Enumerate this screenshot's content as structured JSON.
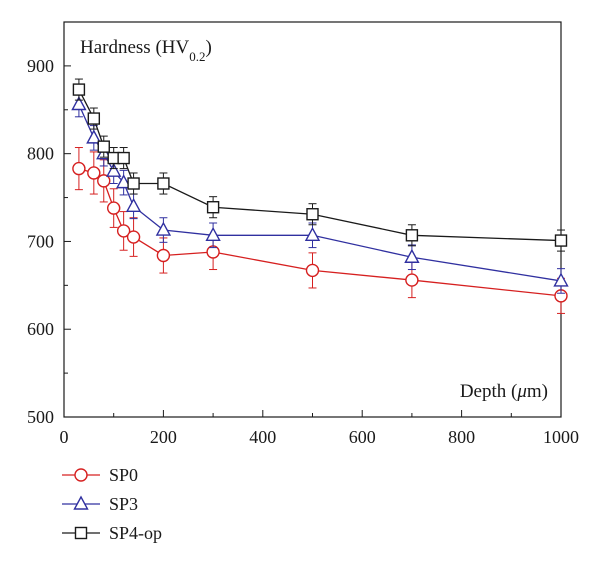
{
  "chart_data": {
    "type": "line",
    "ylabel_prefix": "Hardness (HV",
    "ylabel_sub": "0.2",
    "ylabel_suffix": ")",
    "xlabel_prefix": "Depth (",
    "xlabel_mu": "μ",
    "xlabel_suffix": "m)",
    "xlim": [
      0,
      1000
    ],
    "ylim": [
      500,
      950
    ],
    "xticks": [
      0,
      200,
      400,
      600,
      800,
      1000
    ],
    "yticks": [
      500,
      600,
      700,
      800,
      900
    ],
    "grid": false,
    "legend_position": "below-left",
    "series": [
      {
        "name": "SP0",
        "color": "#d62020",
        "marker": "circle",
        "x": [
          30,
          60,
          80,
          100,
          120,
          140,
          200,
          300,
          500,
          700,
          1000
        ],
        "y": [
          783,
          778,
          769,
          738,
          712,
          705,
          684,
          688,
          667,
          656,
          638
        ],
        "err": [
          24,
          24,
          24,
          22,
          22,
          22,
          20,
          20,
          20,
          20,
          20
        ]
      },
      {
        "name": "SP3",
        "color": "#3030a0",
        "marker": "triangle",
        "x": [
          30,
          60,
          80,
          100,
          120,
          140,
          200,
          300,
          500,
          700,
          1000
        ],
        "y": [
          856,
          818,
          800,
          780,
          767,
          740,
          713,
          707,
          707,
          682,
          655
        ],
        "err": [
          14,
          14,
          14,
          14,
          14,
          14,
          14,
          14,
          14,
          14,
          14
        ]
      },
      {
        "name": "SP4-op",
        "color": "#1a1a1a",
        "marker": "square",
        "x": [
          30,
          60,
          80,
          100,
          120,
          140,
          200,
          300,
          500,
          700,
          1000
        ],
        "y": [
          873,
          840,
          808,
          795,
          795,
          766,
          766,
          739,
          731,
          707,
          701
        ],
        "err": [
          12,
          12,
          12,
          12,
          12,
          12,
          12,
          12,
          12,
          12,
          12
        ]
      }
    ]
  }
}
